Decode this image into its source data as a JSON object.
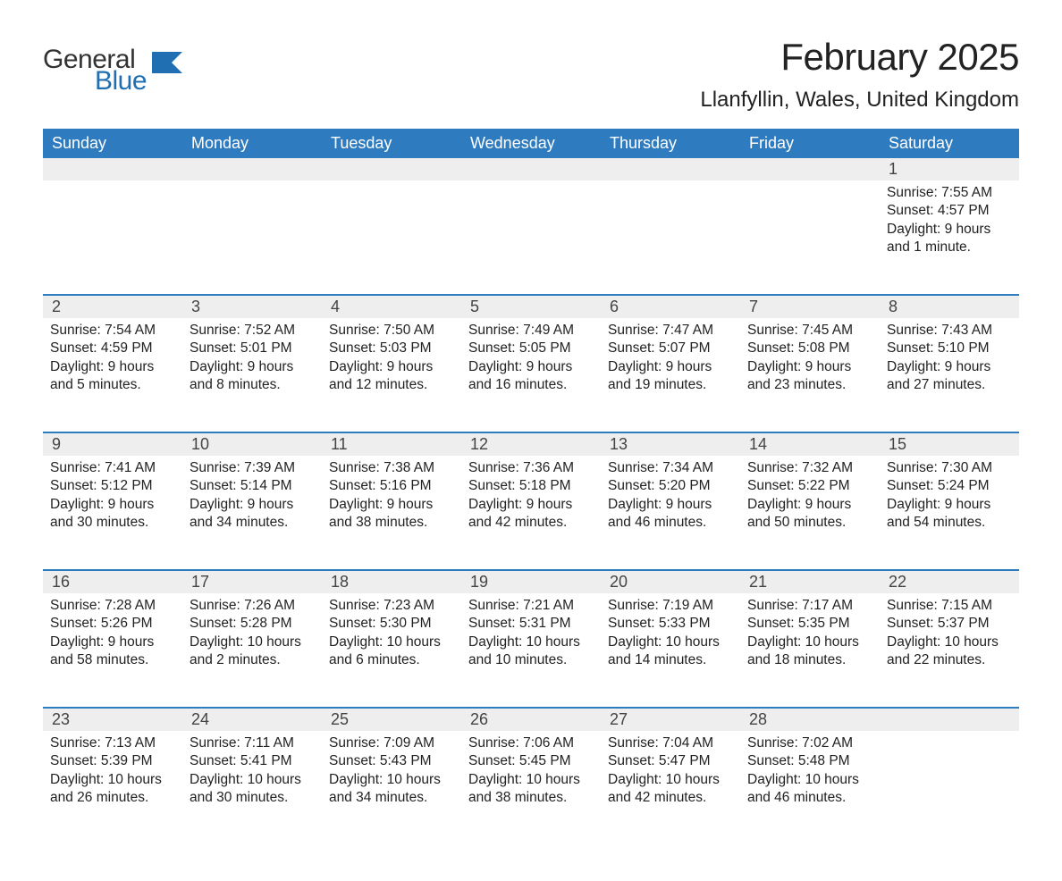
{
  "logo": {
    "word1": "General",
    "word2": "Blue",
    "accent_color": "#1f6fb2"
  },
  "title": "February 2025",
  "location": "Llanfyllin, Wales, United Kingdom",
  "header_bg": "#2e7bbf",
  "daynum_bg": "#eeeeee",
  "day_names": [
    "Sunday",
    "Monday",
    "Tuesday",
    "Wednesday",
    "Thursday",
    "Friday",
    "Saturday"
  ],
  "weeks": [
    [
      null,
      null,
      null,
      null,
      null,
      null,
      {
        "n": "1",
        "sunrise": "7:55 AM",
        "sunset": "4:57 PM",
        "daylight": "9 hours and 1 minute."
      }
    ],
    [
      {
        "n": "2",
        "sunrise": "7:54 AM",
        "sunset": "4:59 PM",
        "daylight": "9 hours and 5 minutes."
      },
      {
        "n": "3",
        "sunrise": "7:52 AM",
        "sunset": "5:01 PM",
        "daylight": "9 hours and 8 minutes."
      },
      {
        "n": "4",
        "sunrise": "7:50 AM",
        "sunset": "5:03 PM",
        "daylight": "9 hours and 12 minutes."
      },
      {
        "n": "5",
        "sunrise": "7:49 AM",
        "sunset": "5:05 PM",
        "daylight": "9 hours and 16 minutes."
      },
      {
        "n": "6",
        "sunrise": "7:47 AM",
        "sunset": "5:07 PM",
        "daylight": "9 hours and 19 minutes."
      },
      {
        "n": "7",
        "sunrise": "7:45 AM",
        "sunset": "5:08 PM",
        "daylight": "9 hours and 23 minutes."
      },
      {
        "n": "8",
        "sunrise": "7:43 AM",
        "sunset": "5:10 PM",
        "daylight": "9 hours and 27 minutes."
      }
    ],
    [
      {
        "n": "9",
        "sunrise": "7:41 AM",
        "sunset": "5:12 PM",
        "daylight": "9 hours and 30 minutes."
      },
      {
        "n": "10",
        "sunrise": "7:39 AM",
        "sunset": "5:14 PM",
        "daylight": "9 hours and 34 minutes."
      },
      {
        "n": "11",
        "sunrise": "7:38 AM",
        "sunset": "5:16 PM",
        "daylight": "9 hours and 38 minutes."
      },
      {
        "n": "12",
        "sunrise": "7:36 AM",
        "sunset": "5:18 PM",
        "daylight": "9 hours and 42 minutes."
      },
      {
        "n": "13",
        "sunrise": "7:34 AM",
        "sunset": "5:20 PM",
        "daylight": "9 hours and 46 minutes."
      },
      {
        "n": "14",
        "sunrise": "7:32 AM",
        "sunset": "5:22 PM",
        "daylight": "9 hours and 50 minutes."
      },
      {
        "n": "15",
        "sunrise": "7:30 AM",
        "sunset": "5:24 PM",
        "daylight": "9 hours and 54 minutes."
      }
    ],
    [
      {
        "n": "16",
        "sunrise": "7:28 AM",
        "sunset": "5:26 PM",
        "daylight": "9 hours and 58 minutes."
      },
      {
        "n": "17",
        "sunrise": "7:26 AM",
        "sunset": "5:28 PM",
        "daylight": "10 hours and 2 minutes."
      },
      {
        "n": "18",
        "sunrise": "7:23 AM",
        "sunset": "5:30 PM",
        "daylight": "10 hours and 6 minutes."
      },
      {
        "n": "19",
        "sunrise": "7:21 AM",
        "sunset": "5:31 PM",
        "daylight": "10 hours and 10 minutes."
      },
      {
        "n": "20",
        "sunrise": "7:19 AM",
        "sunset": "5:33 PM",
        "daylight": "10 hours and 14 minutes."
      },
      {
        "n": "21",
        "sunrise": "7:17 AM",
        "sunset": "5:35 PM",
        "daylight": "10 hours and 18 minutes."
      },
      {
        "n": "22",
        "sunrise": "7:15 AM",
        "sunset": "5:37 PM",
        "daylight": "10 hours and 22 minutes."
      }
    ],
    [
      {
        "n": "23",
        "sunrise": "7:13 AM",
        "sunset": "5:39 PM",
        "daylight": "10 hours and 26 minutes."
      },
      {
        "n": "24",
        "sunrise": "7:11 AM",
        "sunset": "5:41 PM",
        "daylight": "10 hours and 30 minutes."
      },
      {
        "n": "25",
        "sunrise": "7:09 AM",
        "sunset": "5:43 PM",
        "daylight": "10 hours and 34 minutes."
      },
      {
        "n": "26",
        "sunrise": "7:06 AM",
        "sunset": "5:45 PM",
        "daylight": "10 hours and 38 minutes."
      },
      {
        "n": "27",
        "sunrise": "7:04 AM",
        "sunset": "5:47 PM",
        "daylight": "10 hours and 42 minutes."
      },
      {
        "n": "28",
        "sunrise": "7:02 AM",
        "sunset": "5:48 PM",
        "daylight": "10 hours and 46 minutes."
      },
      null
    ]
  ],
  "labels": {
    "sunrise": "Sunrise: ",
    "sunset": "Sunset: ",
    "daylight": "Daylight: "
  }
}
